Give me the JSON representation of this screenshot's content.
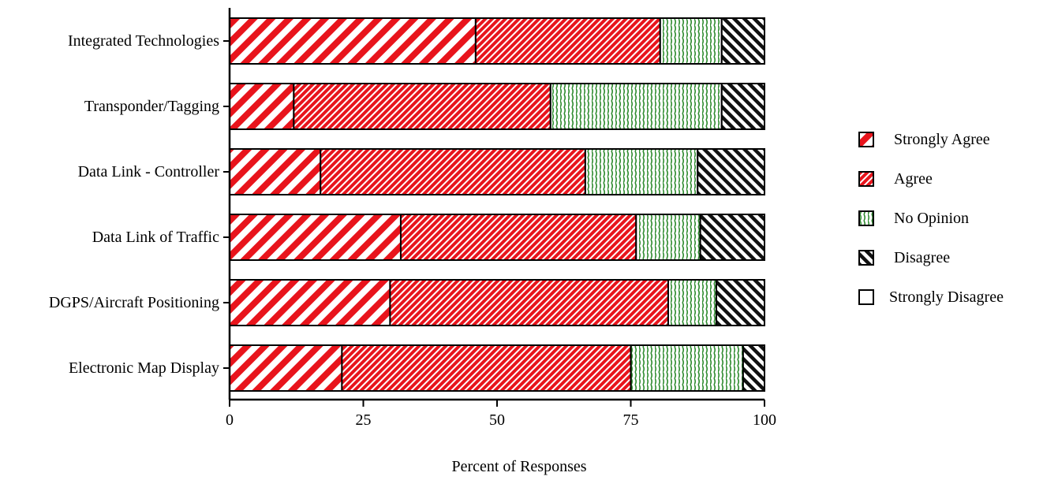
{
  "chart_data": {
    "type": "bar",
    "orientation": "horizontal",
    "stacked": true,
    "title": "",
    "xlabel": "Percent of Responses",
    "ylabel": "",
    "xlim": [
      0,
      100
    ],
    "xticks": [
      0,
      25,
      50,
      75,
      100
    ],
    "grid": false,
    "legend_position": "right",
    "categories": [
      "Integrated Technologies",
      "Transponder/Tagging",
      "Data Link - Controller",
      "Data Link of Traffic",
      "DGPS/Aircraft Positioning",
      "Electronic Map Display"
    ],
    "series": [
      {
        "name": "Strongly Agree",
        "color": "#e8141c",
        "pattern": "wide-diagonal-stripes",
        "values": [
          46,
          12,
          17,
          32,
          30,
          21
        ]
      },
      {
        "name": "Agree",
        "color": "#e8141c",
        "pattern": "fine-diagonal-stripes",
        "values": [
          34.5,
          48,
          49.5,
          44,
          52,
          54
        ]
      },
      {
        "name": "No Opinion",
        "color": "#2e8b2e",
        "pattern": "wavy-lines",
        "values": [
          11.5,
          32,
          21,
          12,
          9,
          21
        ]
      },
      {
        "name": "Disagree",
        "color": "#000000",
        "pattern": "dense-diagonal-stripes",
        "values": [
          8,
          8,
          12.5,
          12,
          9,
          4
        ]
      },
      {
        "name": "Strongly Disagree",
        "color": "#ffffff",
        "pattern": "none",
        "values": [
          0,
          0,
          0,
          0,
          0,
          0
        ]
      }
    ]
  }
}
